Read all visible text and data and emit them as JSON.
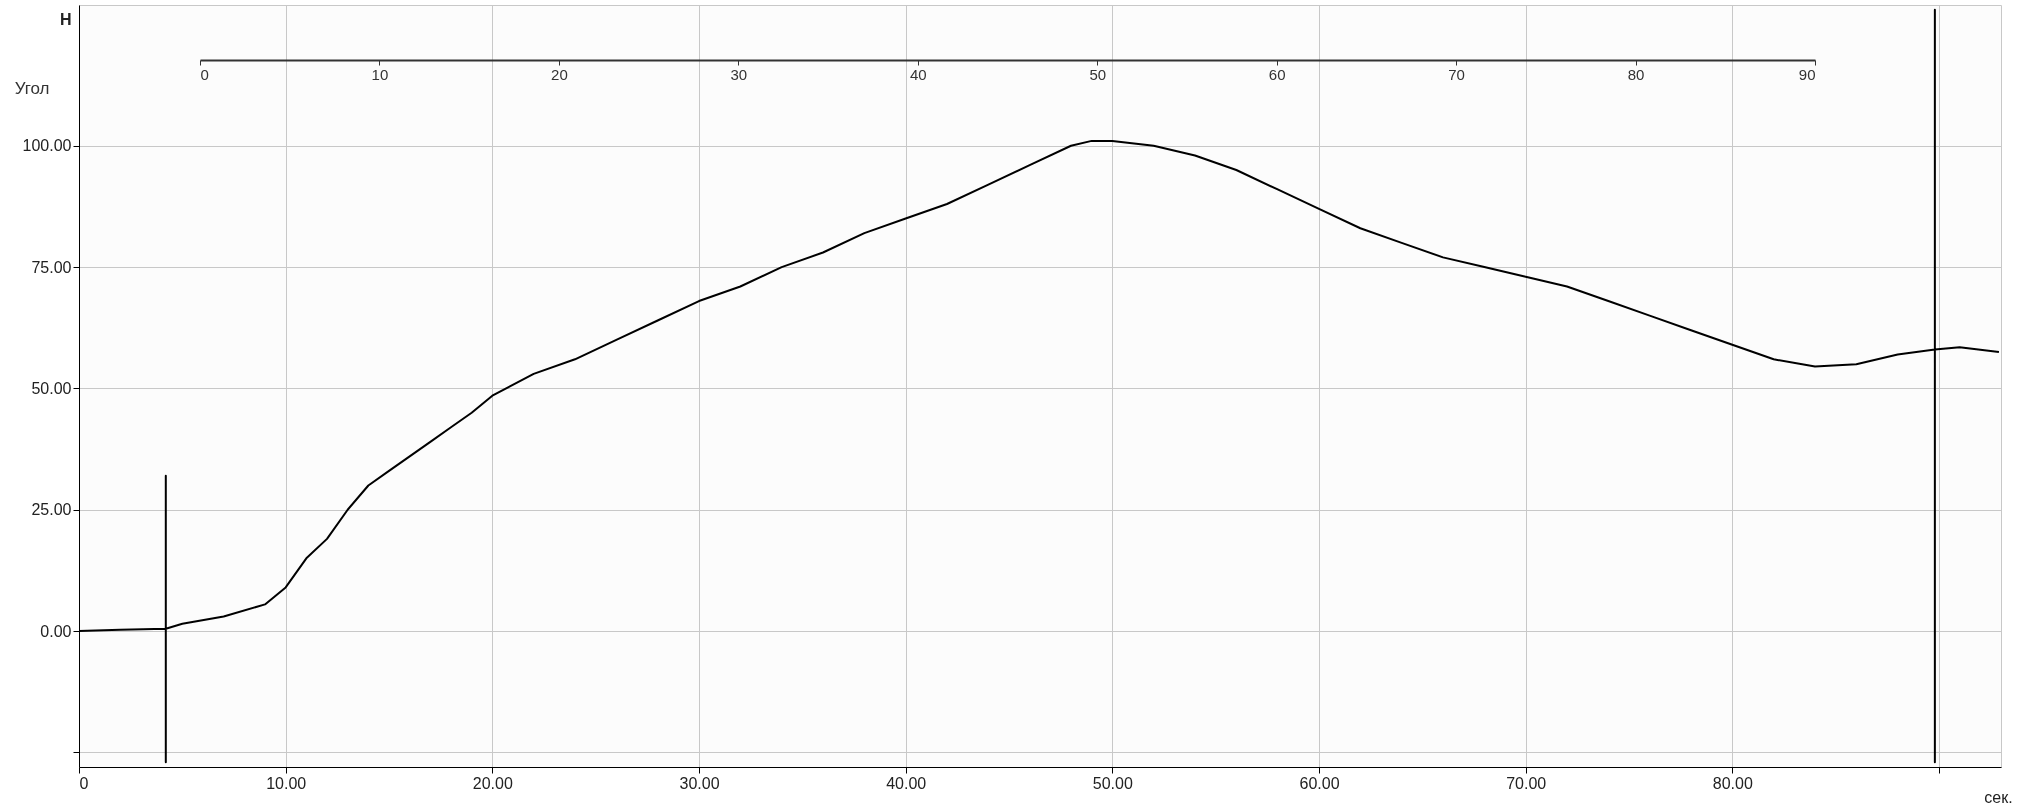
{
  "chart_data": {
    "type": "line",
    "xlabel": "сек.",
    "ylabel": "Н",
    "x2label": "Угол",
    "xlim": [
      0,
      93
    ],
    "ylim": [
      -28,
      129
    ],
    "xticks": [
      0,
      {
        "value": 10,
        "label": "10.00"
      },
      {
        "value": 20,
        "label": "20.00"
      },
      {
        "value": 30,
        "label": "30.00"
      },
      {
        "value": 40,
        "label": "40.00"
      },
      {
        "value": 50,
        "label": "50.00"
      },
      {
        "value": 60,
        "label": "60.00"
      },
      {
        "value": 70,
        "label": "70.00"
      },
      {
        "value": 80,
        "label": "80.00"
      },
      {
        "value": 90,
        "label": null
      }
    ],
    "yticks": [
      {
        "value": -25,
        "label": null
      },
      {
        "value": 0,
        "label": "0.00"
      },
      {
        "value": 25,
        "label": "25.00"
      },
      {
        "value": 50,
        "label": "50.00"
      },
      {
        "value": 75,
        "label": "75.00"
      },
      {
        "value": 100,
        "label": "100.00"
      }
    ],
    "x2lim": [
      0,
      90
    ],
    "x2ticks": [
      0,
      10,
      20,
      30,
      40,
      50,
      60,
      70,
      80,
      90
    ],
    "grid": true,
    "marker": "none",
    "line_style": "solid",
    "series": [
      {
        "color": "#000000",
        "x": [
          0,
          2,
          4.2,
          4.2,
          4.2,
          4.2,
          5,
          7,
          9,
          10,
          11,
          12,
          13,
          14,
          15,
          16,
          17,
          18,
          19,
          20,
          22,
          24,
          26,
          28,
          30,
          32,
          34,
          36,
          38,
          40,
          42,
          44,
          46,
          48,
          49,
          50,
          52,
          54,
          56,
          58,
          60,
          62,
          64,
          66,
          68,
          70,
          72,
          74,
          76,
          78,
          80,
          82,
          84,
          86,
          88,
          89.8,
          89.8,
          89.8,
          89.8,
          91,
          92.9
        ],
        "values": [
          0,
          0.3,
          0.5,
          32,
          -27,
          0.5,
          1.5,
          3,
          5.5,
          9,
          15,
          19,
          25,
          30,
          33,
          36,
          39,
          42,
          45,
          48.5,
          53,
          56,
          60,
          64,
          68,
          71,
          75,
          78,
          82,
          85,
          88,
          92,
          96,
          100,
          101,
          101,
          100,
          98,
          95,
          91,
          87,
          83,
          80,
          77,
          75,
          73,
          71,
          68,
          65,
          62,
          59,
          56,
          54.5,
          55,
          57,
          58,
          128,
          -27,
          58,
          58.5,
          57.5
        ]
      }
    ]
  }
}
